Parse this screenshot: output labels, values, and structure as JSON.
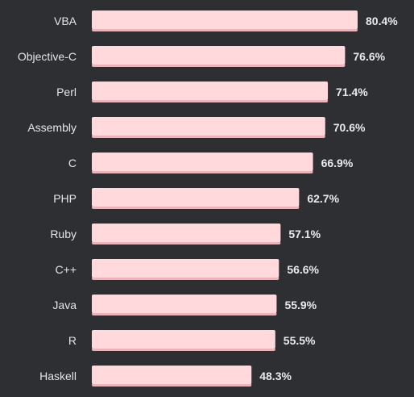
{
  "chart_data": {
    "type": "bar",
    "orientation": "horizontal",
    "categories": [
      "VBA",
      "Objective-C",
      "Perl",
      "Assembly",
      "C",
      "PHP",
      "Ruby",
      "C++",
      "Java",
      "R",
      "Haskell"
    ],
    "values": [
      80.4,
      76.6,
      71.4,
      70.6,
      66.9,
      62.7,
      57.1,
      56.6,
      55.9,
      55.5,
      48.3
    ],
    "value_labels": [
      "80.4%",
      "76.6%",
      "71.4%",
      "70.6%",
      "66.9%",
      "62.7%",
      "57.1%",
      "56.6%",
      "55.9%",
      "55.5%",
      "48.3%"
    ],
    "unit": "%",
    "title": "",
    "xlabel": "",
    "ylabel": "",
    "grid": false,
    "legend": "none",
    "xlim": [
      0,
      80.4
    ],
    "colors": {
      "background": "#2d2f33",
      "bar": "#ffd9dc",
      "bar_shadow": "#e9b5bb",
      "category_text": "#e6e6e6",
      "value_text": "#eaeaea"
    }
  }
}
